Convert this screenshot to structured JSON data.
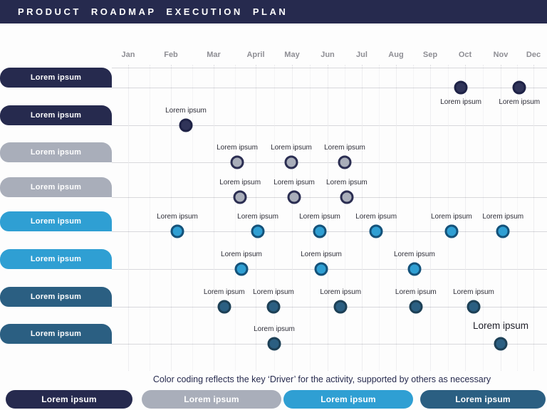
{
  "title": "PRODUCT ROADMAP EXECUTION PLAN",
  "months": [
    "Jan",
    "Feb",
    "Mar",
    "April",
    "May",
    "Jun",
    "Jul",
    "Aug",
    "Sep",
    "Oct",
    "Nov",
    "Dec"
  ],
  "caption": "Color coding reflects the key ‘Driver’ for the activity, supported by others as necessary",
  "colors": {
    "navy": {
      "pill": "#262a4e",
      "fill": "#303459",
      "ring": "#1e2246"
    },
    "gray": {
      "pill": "#a9aeba",
      "fill": "#a9aeba",
      "ring": "#2b2e52"
    },
    "blue": {
      "pill": "#2f9fd3",
      "fill": "#2f9fd3",
      "ring": "#14527a"
    },
    "teal": {
      "pill": "#2b5f82",
      "fill": "#2b5f82",
      "ring": "#1d4056"
    }
  },
  "rows": [
    {
      "label": "Lorem ipsum",
      "color": "navy",
      "milestones": [
        {
          "month": 9.88,
          "label": "Lorem ipsum",
          "label_pos": "below"
        },
        {
          "month": 11.57,
          "label": "Lorem ipsum",
          "label_pos": "below"
        }
      ]
    },
    {
      "label": "Lorem ipsum",
      "color": "navy",
      "milestones": [
        {
          "month": 2.35,
          "label": "Lorem ipsum"
        }
      ]
    },
    {
      "label": "Lorem ipsum",
      "color": "gray",
      "milestones": [
        {
          "month": 3.56,
          "label": "Lorem ipsum"
        },
        {
          "month": 4.98,
          "label": "Lorem ipsum"
        },
        {
          "month": 6.5,
          "label": "Lorem ipsum"
        }
      ]
    },
    {
      "label": "Lorem ipsum",
      "color": "gray",
      "milestones": [
        {
          "month": 3.63,
          "label": "Lorem ipsum"
        },
        {
          "month": 5.06,
          "label": "Lorem ipsum"
        },
        {
          "month": 6.56,
          "label": "Lorem ipsum"
        }
      ]
    },
    {
      "label": "Lorem ipsum",
      "color": "blue",
      "milestones": [
        {
          "month": 2.15,
          "label": "Lorem ipsum"
        },
        {
          "month": 4.06,
          "label": "Lorem ipsum"
        },
        {
          "month": 5.78,
          "label": "Lorem ipsum"
        },
        {
          "month": 7.42,
          "label": "Lorem ipsum"
        },
        {
          "month": 9.61,
          "label": "Lorem ipsum"
        },
        {
          "month": 11.07,
          "label": "Lorem ipsum"
        }
      ]
    },
    {
      "label": "Lorem ipsum",
      "color": "blue",
      "milestones": [
        {
          "month": 3.66,
          "label": "Lorem ipsum"
        },
        {
          "month": 5.82,
          "label": "Lorem ipsum"
        },
        {
          "month": 8.54,
          "label": "Lorem ipsum"
        }
      ]
    },
    {
      "label": "Lorem ipsum",
      "color": "teal",
      "milestones": [
        {
          "month": 3.25,
          "label": "Lorem ipsum"
        },
        {
          "month": 4.49,
          "label": "Lorem ipsum"
        },
        {
          "month": 6.38,
          "label": "Lorem ipsum"
        },
        {
          "month": 8.58,
          "label": "Lorem ipsum"
        },
        {
          "month": 10.24,
          "label": "Lorem ipsum"
        }
      ]
    },
    {
      "label": "Lorem ipsum",
      "color": "teal",
      "milestones": [
        {
          "month": 4.51,
          "label": "Lorem ipsum"
        },
        {
          "month": 11.0,
          "label": "Lorem ipsum",
          "label_size": "large"
        }
      ]
    }
  ],
  "legend": [
    {
      "label": "Lorem ipsum",
      "color": "navy"
    },
    {
      "label": "Lorem ipsum",
      "color": "gray"
    },
    {
      "label": "Lorem ipsum",
      "color": "blue"
    },
    {
      "label": "Lorem ipsum",
      "color": "teal"
    }
  ]
}
